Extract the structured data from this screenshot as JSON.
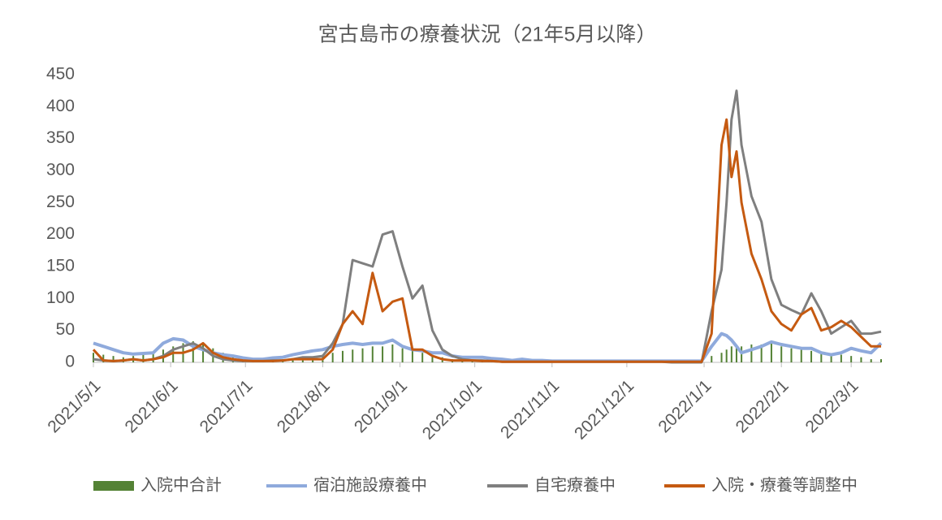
{
  "chart_data": {
    "type": "combo",
    "title": "宮古島市の療養状況（21年5月以降）",
    "x": [
      "2021/5/1",
      "2021/5/5",
      "2021/5/9",
      "2021/5/13",
      "2021/5/17",
      "2021/5/21",
      "2021/5/25",
      "2021/5/29",
      "2021/6/2",
      "2021/6/6",
      "2021/6/10",
      "2021/6/14",
      "2021/6/18",
      "2021/6/22",
      "2021/6/26",
      "2021/6/30",
      "2021/7/4",
      "2021/7/8",
      "2021/7/12",
      "2021/7/16",
      "2021/7/20",
      "2021/7/24",
      "2021/7/28",
      "2021/8/1",
      "2021/8/5",
      "2021/8/9",
      "2021/8/13",
      "2021/8/17",
      "2021/8/21",
      "2021/8/25",
      "2021/8/29",
      "2021/9/2",
      "2021/9/6",
      "2021/9/10",
      "2021/9/14",
      "2021/9/18",
      "2021/9/22",
      "2021/9/26",
      "2021/9/30",
      "2021/10/4",
      "2021/10/8",
      "2021/10/12",
      "2021/10/16",
      "2021/10/20",
      "2021/10/24",
      "2021/10/28",
      "2021/11/1",
      "2021/11/5",
      "2021/11/9",
      "2021/11/13",
      "2021/11/17",
      "2021/11/21",
      "2021/11/25",
      "2021/11/29",
      "2021/12/3",
      "2021/12/7",
      "2021/12/11",
      "2021/12/15",
      "2021/12/19",
      "2021/12/23",
      "2021/12/27",
      "2021/12/31",
      "2022/1/4",
      "2022/1/8",
      "2022/1/10",
      "2022/1/12",
      "2022/1/14",
      "2022/1/16",
      "2022/1/20",
      "2022/1/24",
      "2022/1/28",
      "2022/2/1",
      "2022/2/5",
      "2022/2/9",
      "2022/2/13",
      "2022/2/17",
      "2022/2/21",
      "2022/2/25",
      "2022/3/1",
      "2022/3/5",
      "2022/3/9",
      "2022/3/13"
    ],
    "series": [
      {
        "name": "入院中合計",
        "type": "bar",
        "color": "#548235",
        "values": [
          15,
          12,
          10,
          8,
          10,
          12,
          15,
          20,
          25,
          30,
          33,
          30,
          22,
          15,
          10,
          6,
          4,
          3,
          3,
          5,
          5,
          5,
          8,
          12,
          15,
          18,
          20,
          22,
          25,
          25,
          28,
          22,
          20,
          15,
          12,
          8,
          5,
          4,
          3,
          2,
          2,
          2,
          1,
          1,
          1,
          1,
          1,
          1,
          1,
          1,
          1,
          1,
          1,
          1,
          1,
          1,
          1,
          1,
          1,
          1,
          1,
          1,
          10,
          15,
          20,
          25,
          25,
          25,
          28,
          28,
          30,
          25,
          22,
          20,
          18,
          15,
          12,
          12,
          10,
          8,
          5,
          5
        ]
      },
      {
        "name": "宿泊施設療養中",
        "type": "line",
        "color": "#8faadc",
        "values": [
          30,
          25,
          20,
          15,
          13,
          14,
          15,
          30,
          37,
          35,
          25,
          20,
          15,
          12,
          10,
          7,
          5,
          5,
          7,
          8,
          12,
          15,
          18,
          20,
          25,
          28,
          30,
          28,
          30,
          30,
          35,
          25,
          20,
          18,
          15,
          15,
          10,
          8,
          8,
          8,
          6,
          5,
          3,
          5,
          3,
          3,
          2,
          2,
          2,
          2,
          2,
          2,
          2,
          2,
          2,
          2,
          2,
          2,
          2,
          2,
          2,
          2,
          25,
          45,
          42,
          35,
          25,
          15,
          20,
          25,
          32,
          28,
          25,
          22,
          22,
          15,
          12,
          15,
          22,
          18,
          15,
          30
        ]
      },
      {
        "name": "自宅療養中",
        "type": "line",
        "color": "#7f7f7f",
        "values": [
          5,
          3,
          2,
          3,
          5,
          3,
          5,
          10,
          20,
          25,
          30,
          22,
          10,
          5,
          3,
          2,
          2,
          2,
          3,
          3,
          5,
          8,
          8,
          10,
          30,
          60,
          160,
          155,
          150,
          200,
          205,
          150,
          100,
          120,
          50,
          20,
          10,
          5,
          3,
          3,
          2,
          1,
          1,
          1,
          1,
          1,
          1,
          1,
          1,
          1,
          1,
          1,
          1,
          1,
          1,
          1,
          1,
          1,
          0,
          0,
          0,
          0,
          80,
          145,
          250,
          380,
          425,
          340,
          260,
          220,
          130,
          90,
          82,
          75,
          108,
          80,
          45,
          55,
          65,
          45,
          45,
          48
        ]
      },
      {
        "name": "入院・療養等調整中",
        "type": "line",
        "color": "#c55a11",
        "values": [
          20,
          3,
          2,
          3,
          5,
          3,
          5,
          8,
          15,
          15,
          20,
          30,
          15,
          8,
          5,
          3,
          2,
          2,
          2,
          3,
          5,
          5,
          5,
          5,
          20,
          60,
          80,
          60,
          140,
          80,
          95,
          100,
          20,
          20,
          10,
          5,
          3,
          3,
          3,
          2,
          2,
          1,
          1,
          1,
          1,
          1,
          1,
          1,
          1,
          1,
          1,
          1,
          1,
          1,
          1,
          1,
          1,
          1,
          1,
          1,
          1,
          1,
          45,
          340,
          380,
          290,
          330,
          250,
          170,
          130,
          80,
          60,
          50,
          75,
          85,
          50,
          55,
          65,
          55,
          40,
          25,
          25
        ]
      }
    ],
    "xlim": [
      "2021/5/1",
      "2022/3/13"
    ],
    "xticks": [
      "2021/5/1",
      "2021/6/1",
      "2021/7/1",
      "2021/8/1",
      "2021/9/1",
      "2021/10/1",
      "2021/11/1",
      "2021/12/1",
      "2022/1/1",
      "2022/2/1",
      "2022/3/1"
    ],
    "ylim": [
      0,
      450
    ],
    "yticks": [
      0,
      50,
      100,
      150,
      200,
      250,
      300,
      350,
      400,
      450
    ],
    "grid": false,
    "legend": "bottom"
  }
}
